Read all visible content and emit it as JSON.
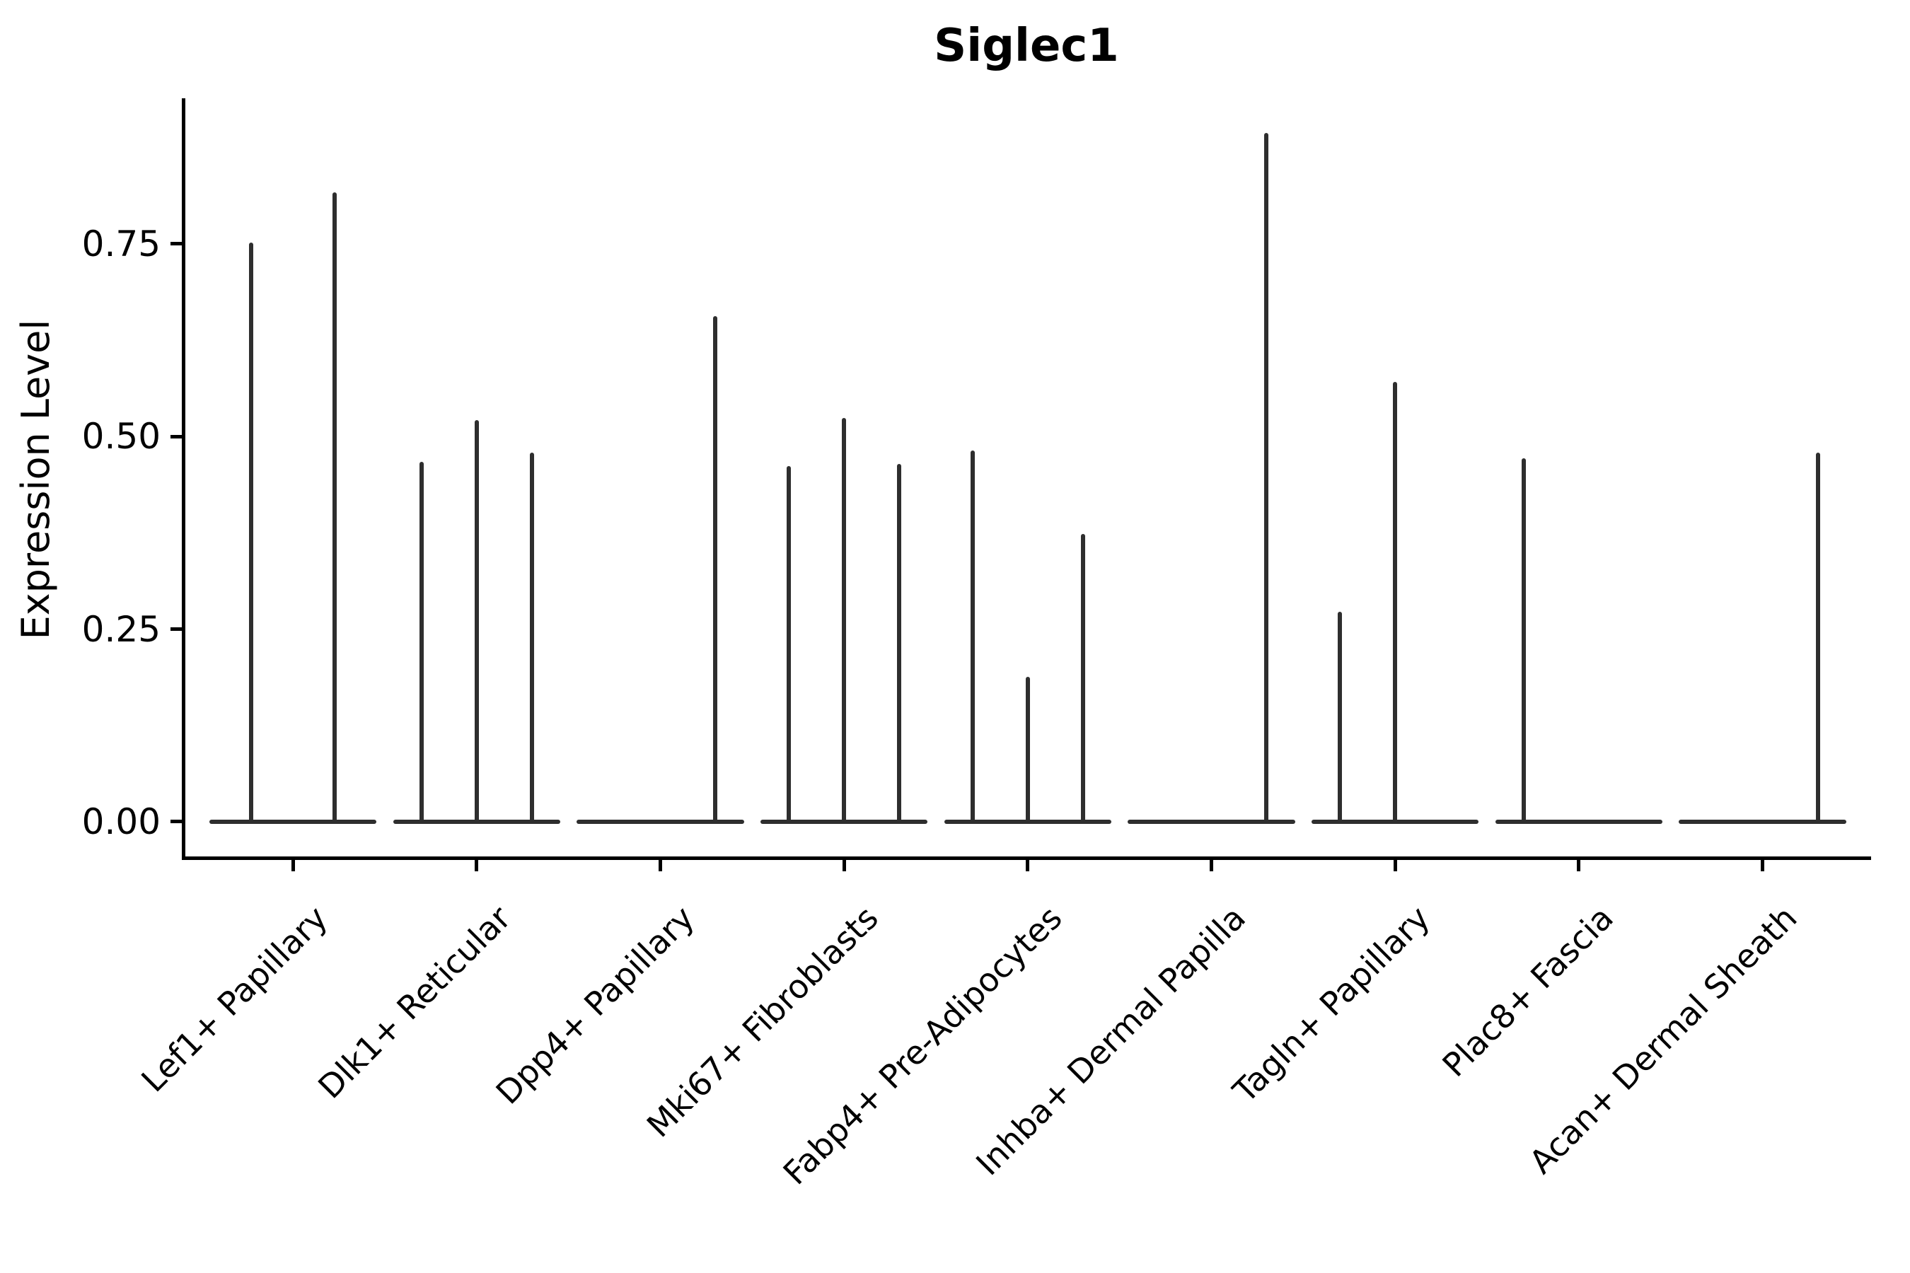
{
  "chart_data": {
    "type": "violin",
    "title": "Siglec1",
    "xlabel": "",
    "ylabel": "Expression Level",
    "yticks": [
      0.0,
      0.25,
      0.5,
      0.75
    ],
    "ytick_labels": [
      "0.00",
      "0.25",
      "0.50",
      "0.75"
    ],
    "ylim": [
      -0.045,
      0.939
    ],
    "grid": false,
    "legend": "none",
    "violin_color": "#2e2e2e",
    "axis_color": "#000000",
    "baseline_halfwidth_frac": 0.455,
    "categories": [
      "Lef1+ Papillary",
      "Dlk1+ Reticular",
      "Dpp4+ Papillary",
      "Mki67+ Fibroblasts",
      "Fabp4+ Pre-Adipocytes",
      "Inhba+ Dermal Papilla",
      "Tagln+ Papillary",
      "Plac8+ Fascia",
      "Acan+ Dermal Sheath"
    ],
    "groups": [
      {
        "category": "Lef1+ Papillary",
        "spikes": [
          {
            "offset_frac": -0.227,
            "max": 0.752
          },
          {
            "offset_frac": 0.227,
            "max": 0.817
          }
        ]
      },
      {
        "category": "Dlk1+ Reticular",
        "spikes": [
          {
            "offset_frac": -0.3,
            "max": 0.467
          },
          {
            "offset_frac": 0.0,
            "max": 0.521
          },
          {
            "offset_frac": 0.3,
            "max": 0.479
          }
        ]
      },
      {
        "category": "Dpp4+ Papillary",
        "spikes": [
          {
            "offset_frac": 0.3,
            "max": 0.656
          }
        ]
      },
      {
        "category": "Mki67+ Fibroblasts",
        "spikes": [
          {
            "offset_frac": -0.3,
            "max": 0.462
          },
          {
            "offset_frac": 0.0,
            "max": 0.524
          },
          {
            "offset_frac": 0.3,
            "max": 0.464
          }
        ]
      },
      {
        "category": "Fabp4+ Pre-Adipocytes",
        "spikes": [
          {
            "offset_frac": -0.3,
            "max": 0.482
          },
          {
            "offset_frac": 0.0,
            "max": 0.188
          },
          {
            "offset_frac": 0.3,
            "max": 0.374
          }
        ]
      },
      {
        "category": "Inhba+ Dermal Papilla",
        "spikes": [
          {
            "offset_frac": 0.3,
            "max": 0.894
          }
        ]
      },
      {
        "category": "Tagln+ Papillary",
        "spikes": [
          {
            "offset_frac": -0.3,
            "max": 0.273
          },
          {
            "offset_frac": 0.0,
            "max": 0.571
          }
        ]
      },
      {
        "category": "Plac8+ Fascia",
        "spikes": [
          {
            "offset_frac": -0.3,
            "max": 0.472
          }
        ]
      },
      {
        "category": "Acan+ Dermal Sheath",
        "spikes": [
          {
            "offset_frac": 0.3,
            "max": 0.479
          }
        ]
      }
    ]
  }
}
